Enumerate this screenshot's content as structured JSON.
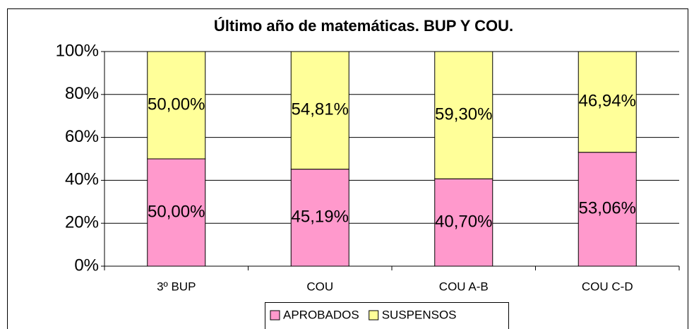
{
  "chart_data": {
    "type": "stacked_bar",
    "title": "Último año de matemáticas. BUP Y COU.",
    "categories": [
      "3º BUP",
      "COU",
      "COU A-B",
      "COU C-D"
    ],
    "series": [
      {
        "name": "APROBADOS",
        "color": "#ff99cc",
        "values": [
          50.0,
          45.19,
          40.7,
          53.06
        ],
        "value_labels": [
          "50,00%",
          "45,19%",
          "40,70%",
          "53,06%"
        ]
      },
      {
        "name": "SUSPENSOS",
        "color": "#ffff99",
        "values": [
          50.0,
          54.81,
          59.3,
          46.94
        ],
        "value_labels": [
          "50,00%",
          "54,81%",
          "59,30%",
          "46,94%"
        ]
      }
    ],
    "ylim": [
      0,
      100
    ],
    "yticks": [
      {
        "value": 0,
        "label": "0%"
      },
      {
        "value": 20,
        "label": "20%"
      },
      {
        "value": 40,
        "label": "40%"
      },
      {
        "value": 60,
        "label": "60%"
      },
      {
        "value": 80,
        "label": "80%"
      },
      {
        "value": 100,
        "label": "100%"
      }
    ],
    "grid": true,
    "legend": "bottom"
  }
}
